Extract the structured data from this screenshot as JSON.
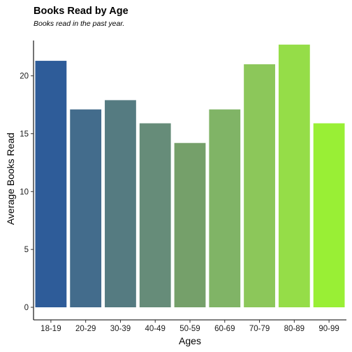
{
  "chart_data": {
    "type": "bar",
    "title": "Books Read by Age",
    "subtitle": "Books read in the past year.",
    "xlabel": "Ages",
    "ylabel": "Average Books Read",
    "categories": [
      "18-19",
      "20-29",
      "30-39",
      "40-49",
      "50-59",
      "60-69",
      "70-79",
      "80-89",
      "90-99"
    ],
    "values": [
      21.3,
      17.1,
      17.9,
      15.9,
      14.2,
      17.1,
      21.0,
      22.7,
      15.9
    ],
    "ylim": [
      0,
      24
    ],
    "yticks": [
      0,
      5,
      10,
      15,
      20
    ],
    "grid": false,
    "legend": "none",
    "colors": [
      "#2e5c99",
      "#436c8c",
      "#557b81",
      "#668c79",
      "#75a06a",
      "#80b466",
      "#8cc75a",
      "#95dd48",
      "#99ef35"
    ]
  }
}
